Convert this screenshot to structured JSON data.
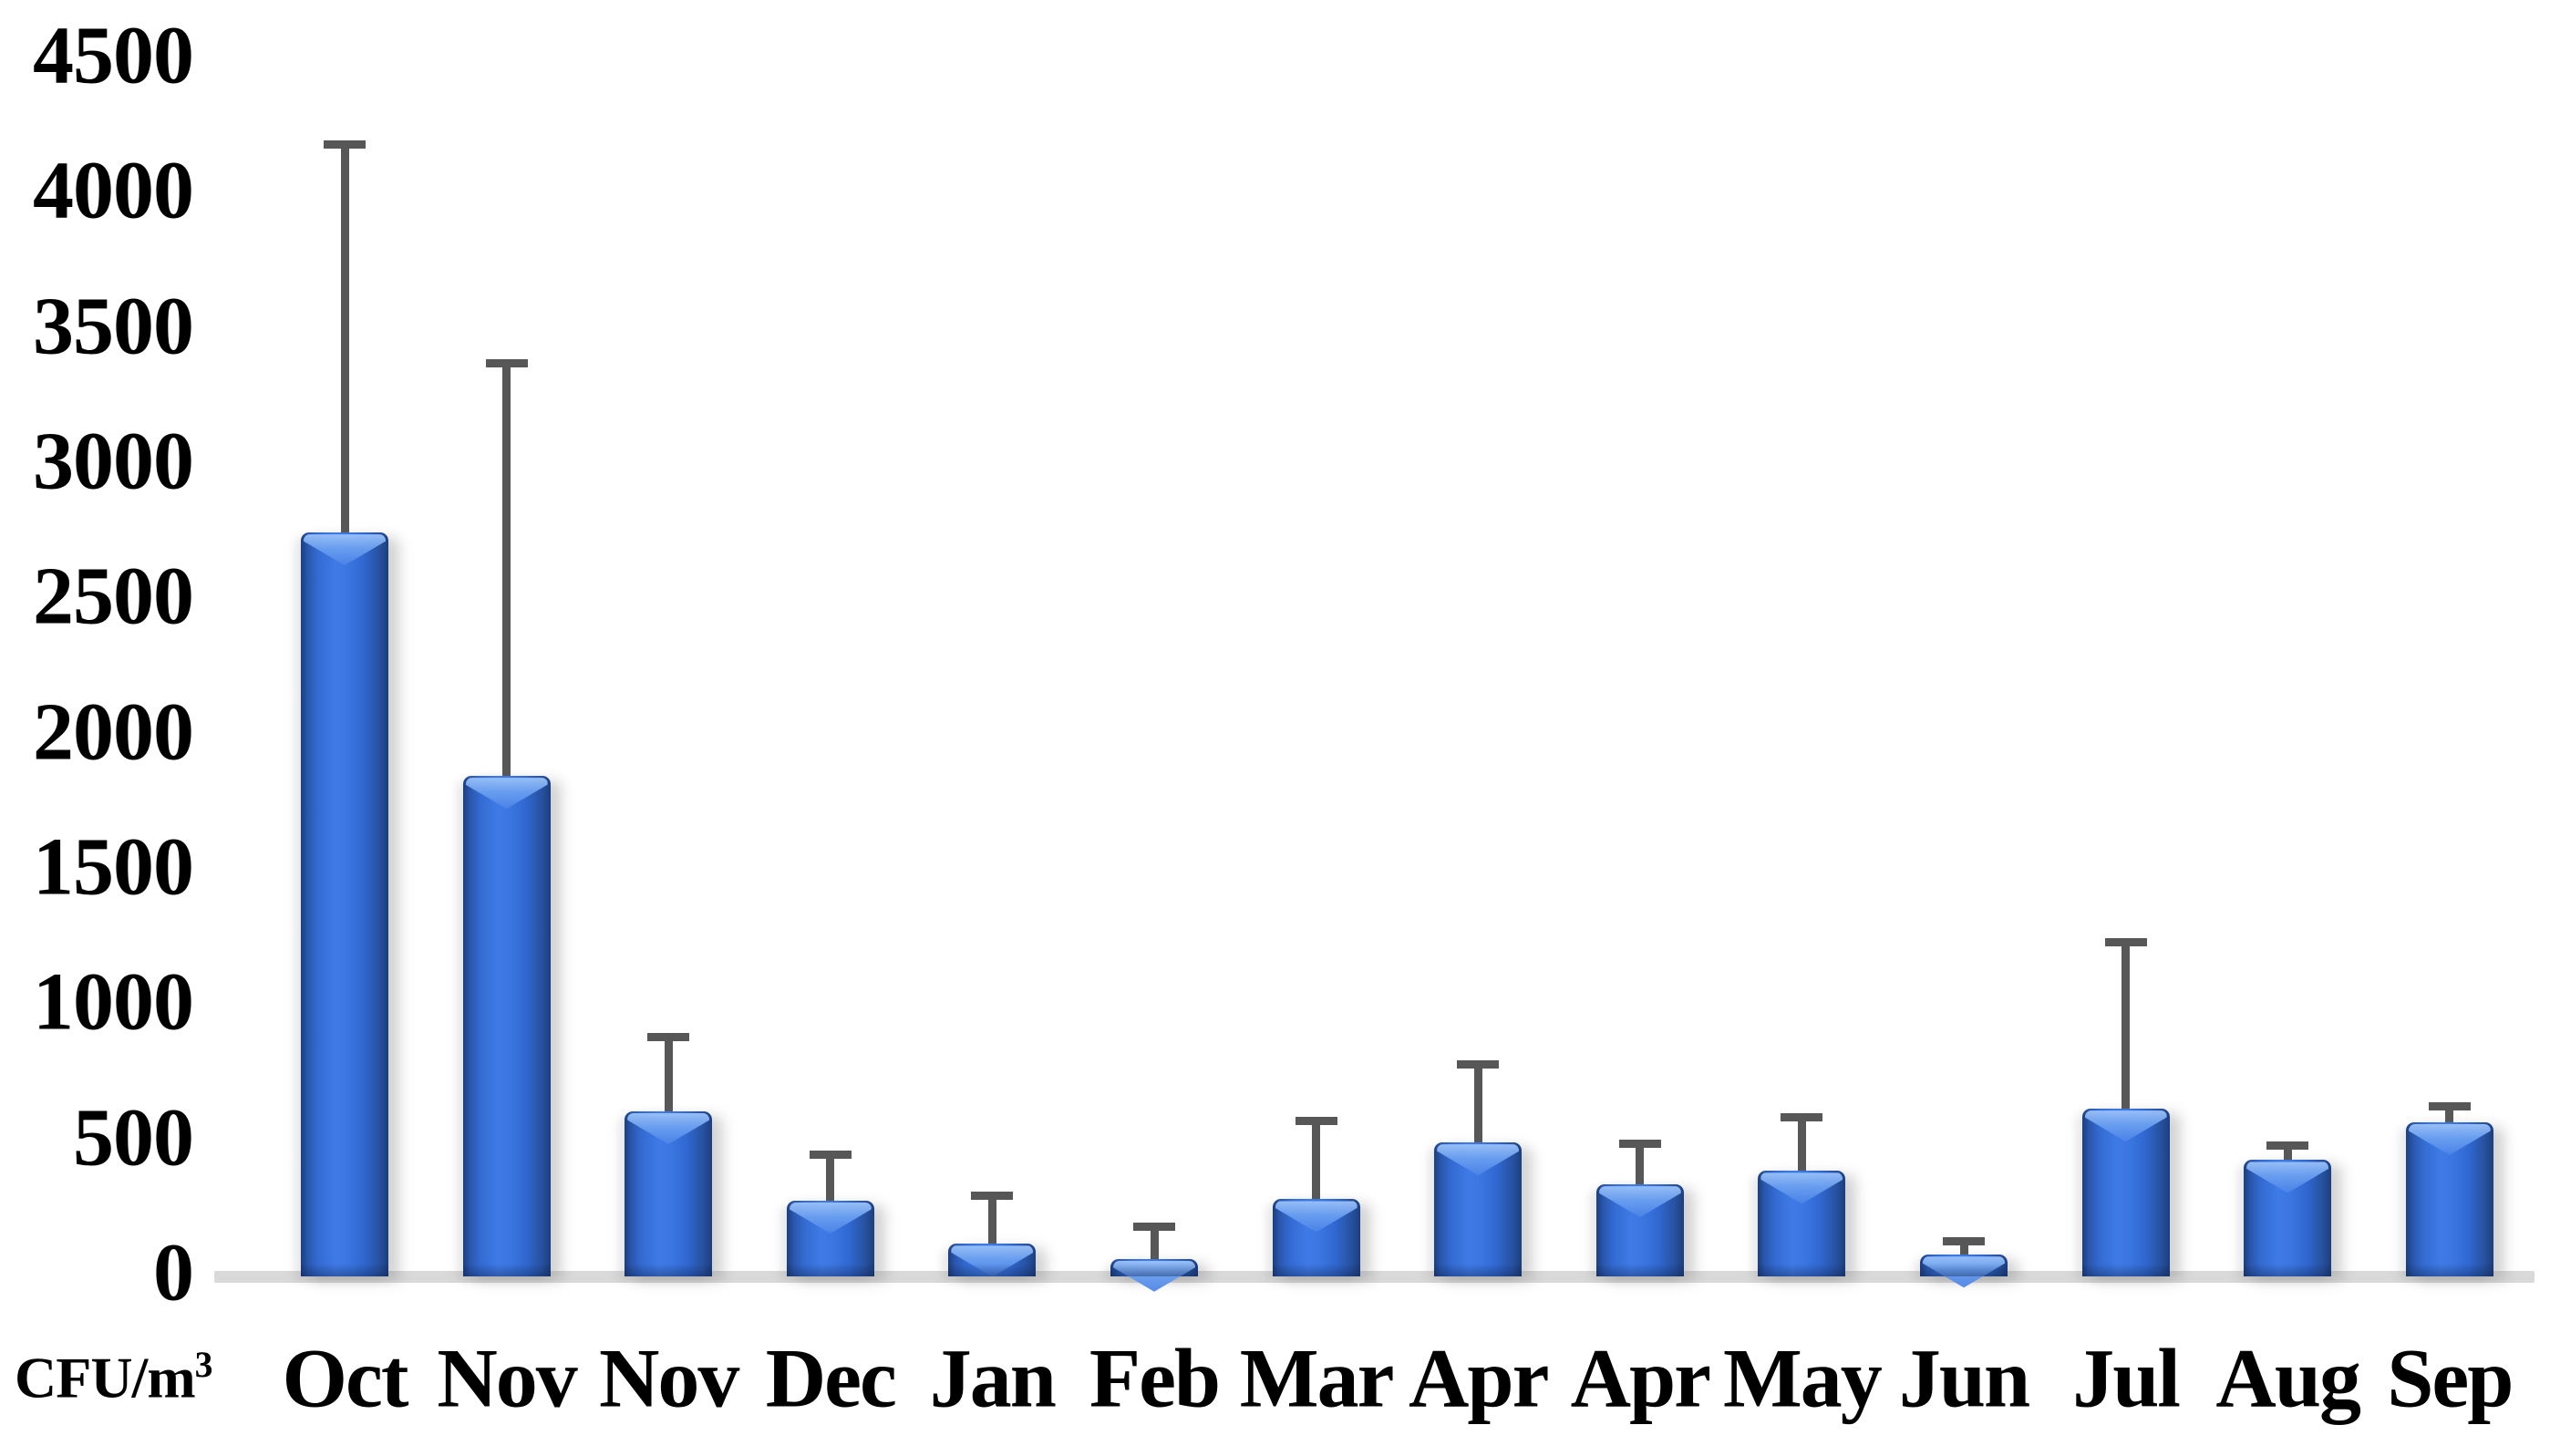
{
  "chart_data": {
    "type": "bar",
    "title": "",
    "xlabel": "",
    "ylabel": "CFU/m³",
    "ylabel_prefix": "CFU/m",
    "ylabel_exponent": "3",
    "categories": [
      "Oct",
      "Nov",
      "Nov",
      "Dec",
      "Jan",
      "Feb",
      "Mar",
      "Apr",
      "Apr",
      "May",
      "Jun",
      "Jul",
      "Aug",
      "Sep"
    ],
    "values": [
      2750,
      1850,
      610,
      280,
      120,
      65,
      285,
      495,
      340,
      390,
      80,
      620,
      430,
      570
    ],
    "errors_plus": [
      1450,
      1540,
      290,
      185,
      195,
      135,
      305,
      305,
      165,
      215,
      65,
      630,
      70,
      75
    ],
    "y_ticks": [
      "4500",
      "4000",
      "3500",
      "3000",
      "2500",
      "2000",
      "1500",
      "1000",
      "500",
      "0"
    ],
    "y_tick_values": [
      4500,
      4000,
      3500,
      3000,
      2500,
      2000,
      1500,
      1000,
      500,
      0
    ],
    "ylim": [
      0,
      4500
    ],
    "grid": false,
    "legend": null,
    "error_bars": "plus-direction-only"
  },
  "colors": {
    "bar_edge_dark": "#1c3e7e",
    "bar_mid": "#2f65cb",
    "bar_highlight": "#3f7be7",
    "bar_gloss": "#9cc2f8",
    "error_bar": "#575757",
    "axis_line": "#d9d9d9",
    "text": "#000000",
    "background": "#ffffff"
  }
}
